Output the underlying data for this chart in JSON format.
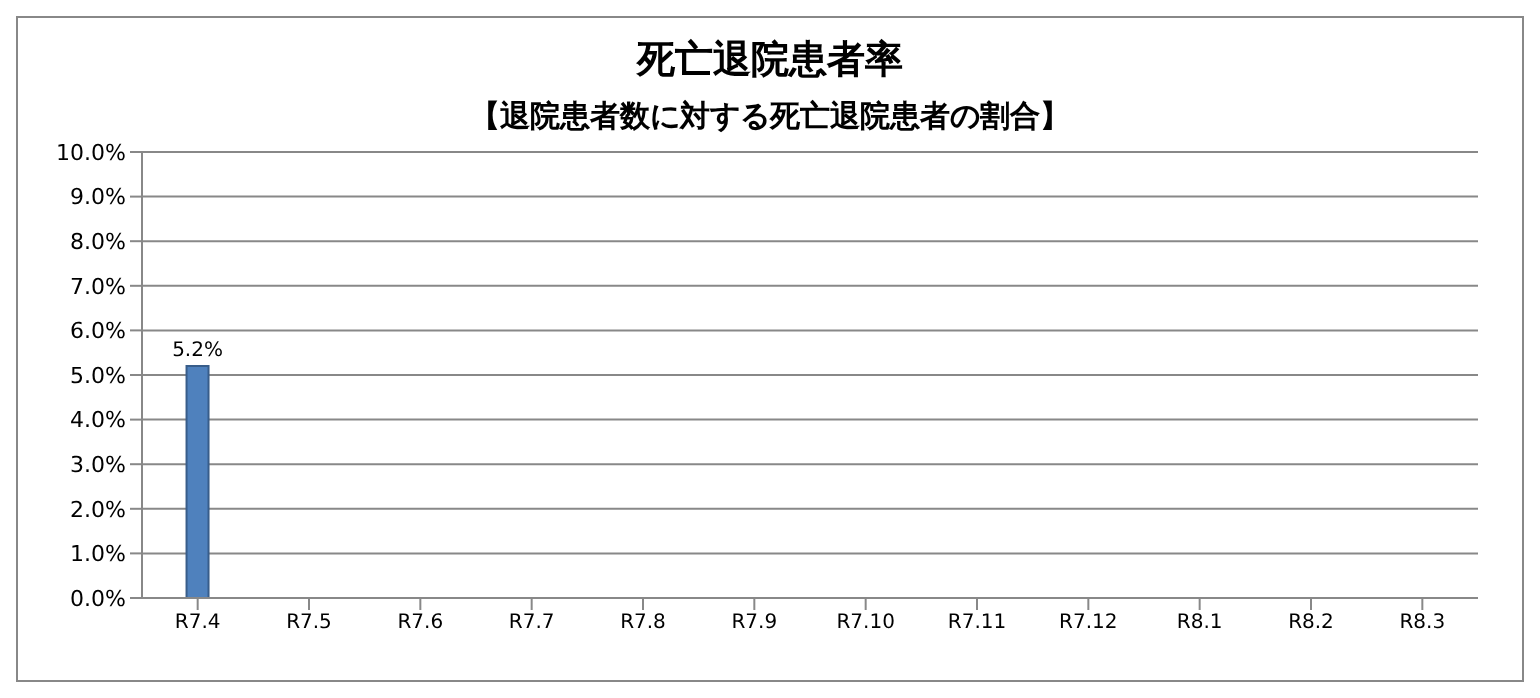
{
  "chart_data": {
    "type": "bar",
    "title": "死亡退院患者率",
    "subtitle": "【退院患者数に対する死亡退院患者の割合】",
    "categories": [
      "R7.4",
      "R7.5",
      "R7.6",
      "R7.7",
      "R7.8",
      "R7.9",
      "R7.10",
      "R7.11",
      "R7.12",
      "R8.1",
      "R8.2",
      "R8.3"
    ],
    "values": [
      5.2,
      null,
      null,
      null,
      null,
      null,
      null,
      null,
      null,
      null,
      null,
      null
    ],
    "value_labels": [
      "5.2%",
      null,
      null,
      null,
      null,
      null,
      null,
      null,
      null,
      null,
      null,
      null
    ],
    "color": "#4f81bd",
    "ylim": [
      0,
      10
    ],
    "yticks": [
      {
        "value": 0,
        "label": "0.0%"
      },
      {
        "value": 1,
        "label": "1.0%"
      },
      {
        "value": 2,
        "label": "2.0%"
      },
      {
        "value": 3,
        "label": "3.0%"
      },
      {
        "value": 4,
        "label": "4.0%"
      },
      {
        "value": 5,
        "label": "5.0%"
      },
      {
        "value": 6,
        "label": "6.0%"
      },
      {
        "value": 7,
        "label": "7.0%"
      },
      {
        "value": 8,
        "label": "8.0%"
      },
      {
        "value": 9,
        "label": "9.0%"
      },
      {
        "value": 10,
        "label": "10.0%"
      }
    ],
    "grid": "y",
    "legend": false
  }
}
